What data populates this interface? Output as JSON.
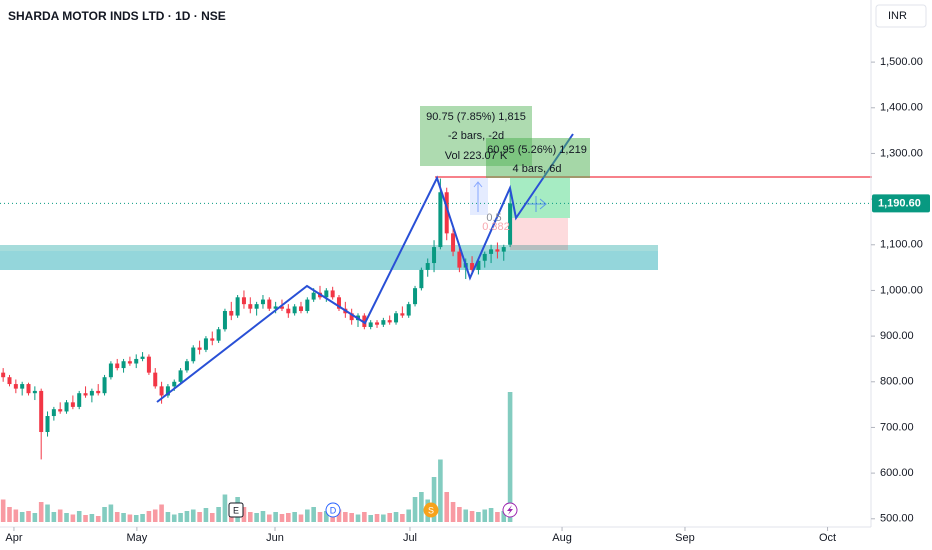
{
  "chart_data": {
    "type": "candlestick",
    "title": "SHARDA MOTOR INDS LTD · 1D · NSE",
    "currency": "INR",
    "xlim": [
      -0.5,
      136.8
    ],
    "xticks": [
      {
        "value": 1.7,
        "label": "Apr"
      },
      {
        "value": 21.1,
        "label": "May"
      },
      {
        "value": 42.9,
        "label": "Jun"
      },
      {
        "value": 64.2,
        "label": "Jul"
      },
      {
        "value": 88.2,
        "label": "Aug"
      },
      {
        "value": 107.6,
        "label": "Sep"
      },
      {
        "value": 130.1,
        "label": "Oct"
      }
    ],
    "ylim": [
      482,
      1636
    ],
    "yticks": [
      {
        "value": 500,
        "label": "500.00"
      },
      {
        "value": 600,
        "label": "600.00"
      },
      {
        "value": 700,
        "label": "700.00"
      },
      {
        "value": 800,
        "label": "800.00"
      },
      {
        "value": 900,
        "label": "900.00"
      },
      {
        "value": 1000,
        "label": "1,000.00"
      },
      {
        "value": 1100,
        "label": "1,100.00"
      },
      {
        "value": 1200,
        "label": "1,200.00"
      },
      {
        "value": 1300,
        "label": "1,300.00"
      },
      {
        "value": 1400,
        "label": "1,400.00"
      },
      {
        "value": 1500,
        "label": "1,500.00"
      }
    ],
    "last_price": {
      "value": 1190.6,
      "label": "1,190.60"
    },
    "up_color": "#089981",
    "down_color": "#f23645",
    "open": [
      820,
      810,
      795,
      785,
      795,
      775,
      780,
      690,
      725,
      740,
      735,
      755,
      745,
      775,
      770,
      780,
      775,
      810,
      840,
      830,
      845,
      840,
      850,
      855,
      820,
      790,
      770,
      790,
      800,
      825,
      845,
      875,
      870,
      895,
      890,
      915,
      955,
      945,
      985,
      970,
      960,
      970,
      980,
      960,
      965,
      960,
      950,
      965,
      955,
      980,
      995,
      985,
      1000,
      985,
      960,
      950,
      935,
      945,
      920,
      930,
      925,
      935,
      930,
      950,
      945,
      970,
      1005,
      1045,
      1060,
      1095,
      1215,
      1125,
      1085,
      1050,
      1060,
      1045,
      1065,
      1080,
      1090,
      1085,
      1100
    ],
    "high": [
      830,
      815,
      805,
      800,
      798,
      790,
      785,
      735,
      745,
      755,
      760,
      770,
      780,
      790,
      785,
      795,
      815,
      845,
      850,
      850,
      855,
      860,
      865,
      860,
      830,
      800,
      795,
      805,
      830,
      850,
      880,
      890,
      900,
      910,
      920,
      960,
      975,
      990,
      1000,
      985,
      975,
      990,
      985,
      975,
      980,
      970,
      970,
      975,
      985,
      1005,
      1010,
      1005,
      1008,
      990,
      975,
      960,
      950,
      950,
      935,
      935,
      940,
      945,
      955,
      965,
      975,
      1010,
      1050,
      1070,
      1110,
      1245,
      1225,
      1140,
      1095,
      1070,
      1075,
      1070,
      1085,
      1100,
      1105,
      1100,
      1225
    ],
    "low": [
      800,
      790,
      775,
      770,
      770,
      760,
      630,
      680,
      715,
      730,
      730,
      740,
      740,
      765,
      755,
      770,
      770,
      805,
      825,
      820,
      835,
      830,
      845,
      815,
      785,
      752,
      765,
      780,
      795,
      820,
      840,
      860,
      865,
      880,
      885,
      910,
      935,
      940,
      960,
      950,
      945,
      960,
      955,
      950,
      955,
      940,
      945,
      950,
      950,
      975,
      980,
      975,
      980,
      955,
      940,
      925,
      920,
      915,
      915,
      918,
      920,
      925,
      925,
      940,
      940,
      965,
      1000,
      1030,
      1040,
      1090,
      1110,
      1075,
      1040,
      1025,
      1040,
      1035,
      1050,
      1060,
      1070,
      1065,
      1095
    ],
    "close": [
      810,
      795,
      785,
      795,
      775,
      780,
      690,
      725,
      740,
      735,
      755,
      745,
      775,
      770,
      780,
      775,
      810,
      840,
      830,
      845,
      840,
      850,
      855,
      820,
      790,
      770,
      790,
      800,
      825,
      845,
      875,
      870,
      895,
      890,
      915,
      955,
      945,
      985,
      970,
      960,
      970,
      980,
      960,
      965,
      960,
      950,
      965,
      955,
      980,
      995,
      985,
      1000,
      985,
      960,
      950,
      935,
      945,
      920,
      930,
      925,
      935,
      930,
      950,
      945,
      970,
      1005,
      1045,
      1060,
      1095,
      1215,
      1125,
      1085,
      1050,
      1060,
      1045,
      1065,
      1080,
      1090,
      1085,
      1095,
      1190.6
    ],
    "volume": [
      45,
      30,
      25,
      20,
      22,
      18,
      40,
      35,
      20,
      25,
      18,
      15,
      22,
      14,
      16,
      12,
      30,
      35,
      20,
      18,
      15,
      14,
      16,
      22,
      25,
      35,
      20,
      15,
      18,
      22,
      25,
      20,
      28,
      18,
      30,
      55,
      35,
      50,
      30,
      20,
      18,
      22,
      15,
      20,
      16,
      18,
      20,
      15,
      25,
      30,
      20,
      22,
      18,
      25,
      20,
      18,
      15,
      20,
      14,
      16,
      15,
      18,
      20,
      16,
      25,
      50,
      60,
      45,
      90,
      125,
      60,
      40,
      30,
      25,
      22,
      20,
      25,
      28,
      20,
      22,
      260
    ],
    "vlim": [
      0,
      300
    ],
    "events": [
      "E",
      "D",
      "S"
    ],
    "annotations": [
      "90.75 (7.85%) 1,815",
      "-2 bars, -2d",
      "Vol 223.07 K",
      "60.95 (5.26%) 1,219",
      "4 bars, 6d",
      "0.5",
      "0.382"
    ]
  }
}
